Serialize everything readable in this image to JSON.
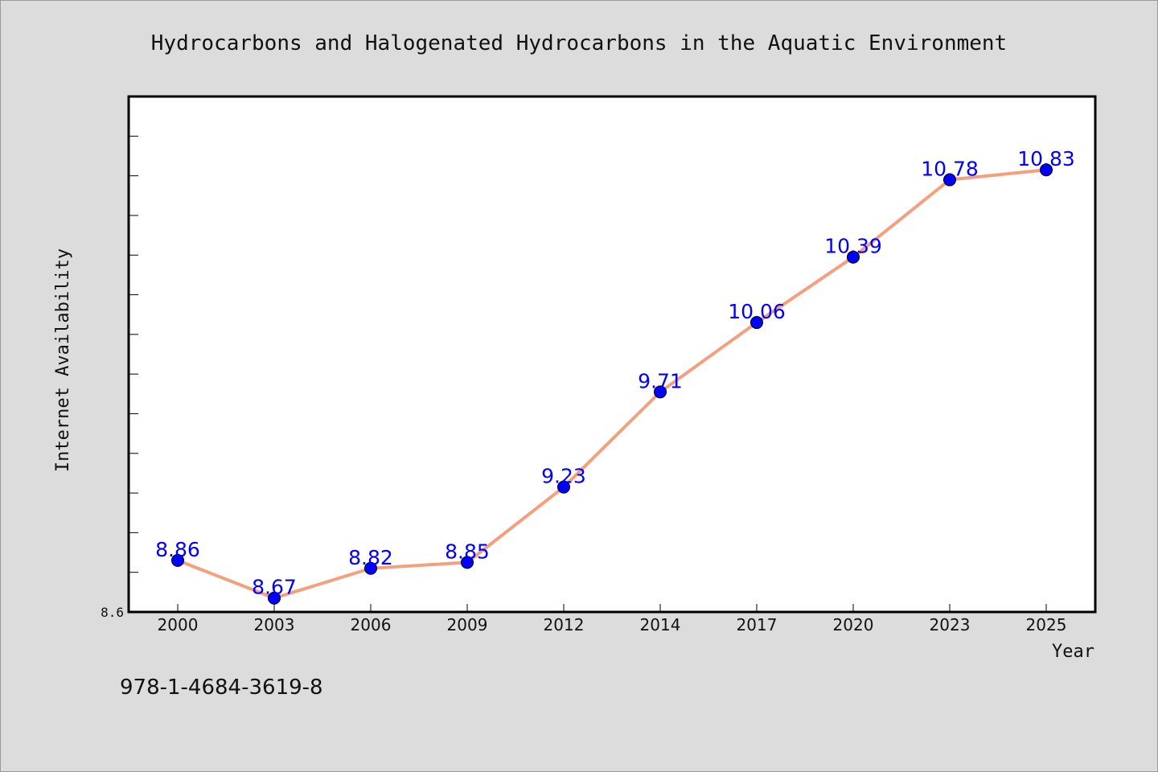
{
  "chart_data": {
    "type": "line",
    "title": "Hydrocarbons and Halogenated Hydrocarbons in the Aquatic Environment",
    "xlabel": "Year",
    "ylabel": "Internet Availability",
    "categories": [
      "2000",
      "2003",
      "2006",
      "2009",
      "2012",
      "2014",
      "2017",
      "2020",
      "2023",
      "2025"
    ],
    "series": [
      {
        "values": [
          8.86,
          8.67,
          8.82,
          8.85,
          9.23,
          9.71,
          10.06,
          10.39,
          10.78,
          10.83
        ],
        "line_color": "#f4a07e",
        "marker_color": "#0000ff"
      }
    ],
    "ylim": [
      8.6,
      11.2
    ],
    "yticks_labeled": [
      "8.6"
    ],
    "grid": false,
    "legend": "none",
    "data_labels": true
  },
  "footer": {
    "isbn": "978-1-4684-3619-8"
  },
  "colors": {
    "background": "#dcdcdc",
    "plot_background": "#ffffff",
    "line": "#f4a07e",
    "marker": "#0000ff",
    "label": "#0000ff"
  }
}
